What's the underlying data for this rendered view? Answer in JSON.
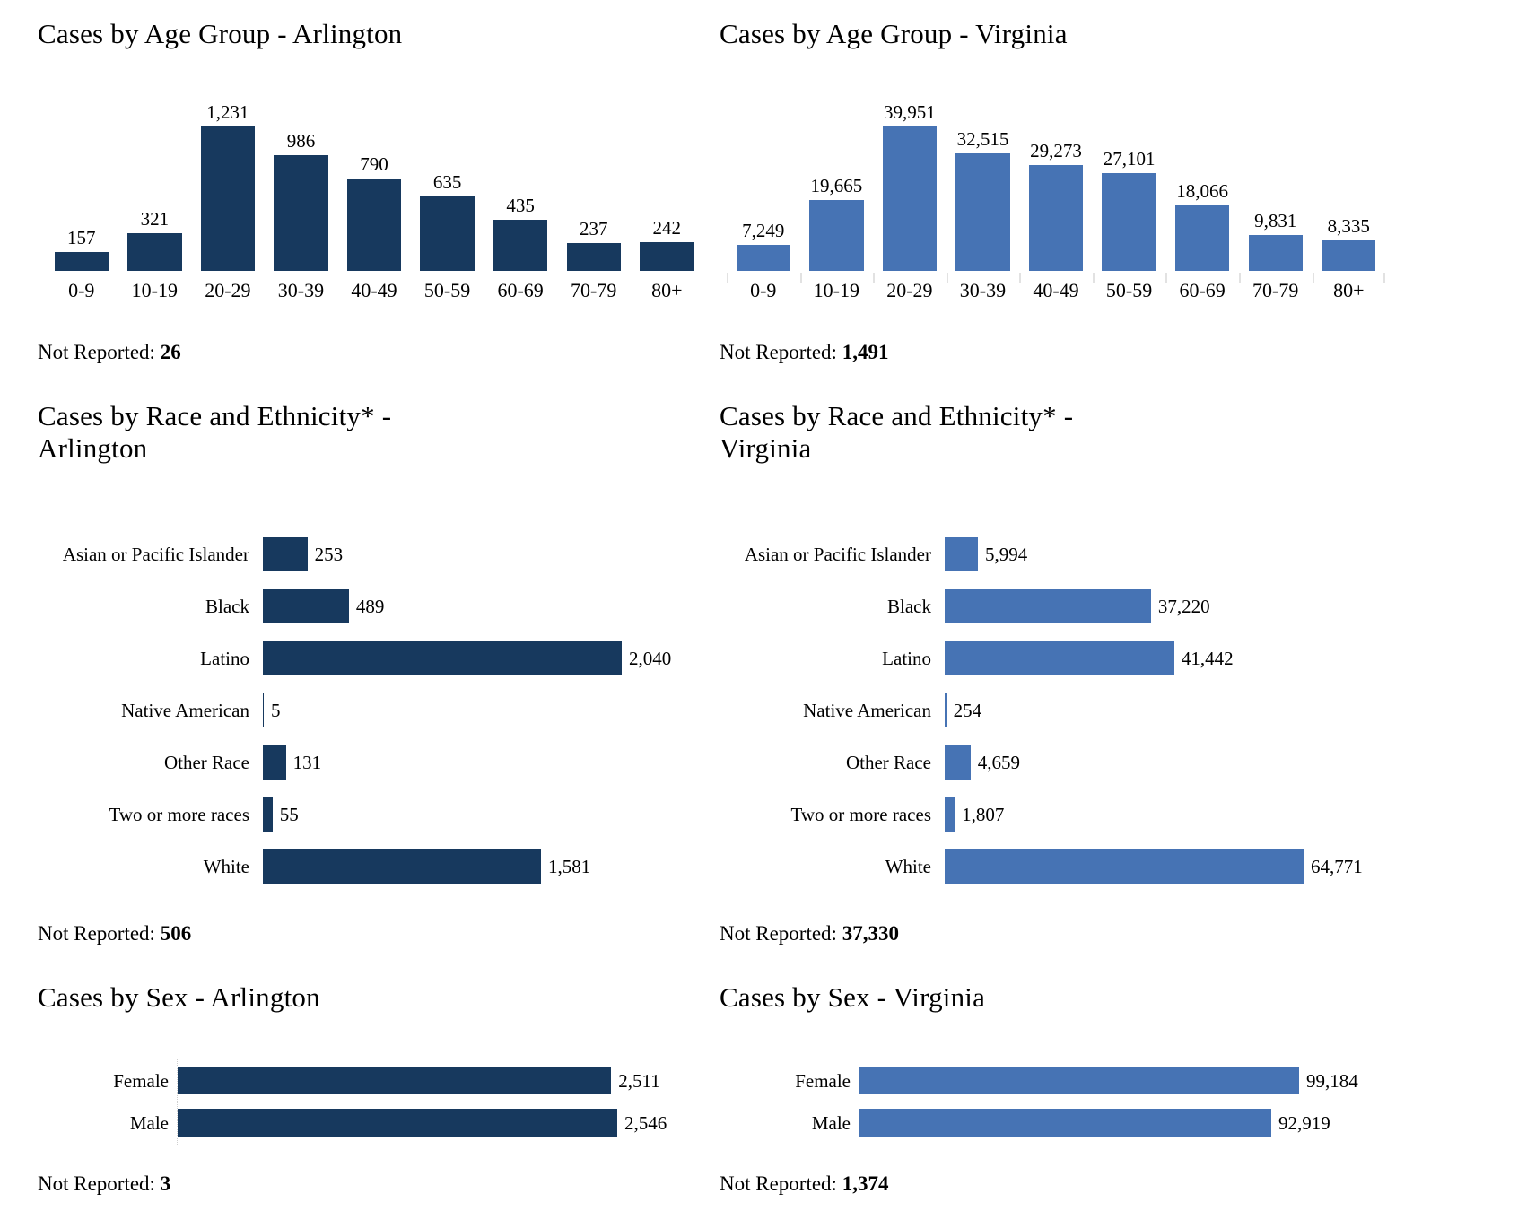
{
  "page": {
    "background": "#ffffff"
  },
  "not_reported_label": "Not Reported:",
  "chart_data": [
    {
      "id": "cases-by-age-arlington",
      "type": "bar",
      "orientation": "vertical",
      "title": "Cases by Age Group - Arlington",
      "title_lines": [
        "Cases by Age Group - Arlington"
      ],
      "color": "#17395E",
      "categories": [
        "0-9",
        "10-19",
        "20-29",
        "30-39",
        "40-49",
        "50-59",
        "60-69",
        "70-79",
        "80+"
      ],
      "values": [
        157,
        321,
        1231,
        986,
        790,
        635,
        435,
        237,
        242
      ],
      "value_labels": [
        "157",
        "321",
        "1,231",
        "986",
        "790",
        "635",
        "435",
        "237",
        "242"
      ],
      "ylim": [
        0,
        1231
      ],
      "grid": false,
      "legend": false,
      "axis_ticks": false,
      "not_reported": "26"
    },
    {
      "id": "cases-by-age-virginia",
      "type": "bar",
      "orientation": "vertical",
      "title": "Cases by Age Group - Virginia",
      "title_lines": [
        "Cases by Age Group - Virginia"
      ],
      "color": "#4673B4",
      "categories": [
        "0-9",
        "10-19",
        "20-29",
        "30-39",
        "40-49",
        "50-59",
        "60-69",
        "70-79",
        "80+"
      ],
      "values": [
        7249,
        19665,
        39951,
        32515,
        29273,
        27101,
        18066,
        9831,
        8335
      ],
      "value_labels": [
        "7,249",
        "19,665",
        "39,951",
        "32,515",
        "29,273",
        "27,101",
        "18,066",
        "9,831",
        "8,335"
      ],
      "ylim": [
        0,
        39951
      ],
      "grid": false,
      "legend": false,
      "axis_ticks": true,
      "not_reported": "1,491"
    },
    {
      "id": "cases-by-race-arlington",
      "type": "bar",
      "orientation": "horizontal",
      "title": "Cases by Race and Ethnicity* - Arlington",
      "title_lines": [
        "Cases by Race and Ethnicity* -",
        "Arlington"
      ],
      "color": "#17395E",
      "categories": [
        "Asian or Pacific Islander",
        "Black",
        "Latino",
        "Native American",
        "Other Race",
        "Two or more races",
        "White"
      ],
      "values": [
        253,
        489,
        2040,
        5,
        131,
        55,
        1581
      ],
      "value_labels": [
        "253",
        "489",
        "2,040",
        "5",
        "131",
        "55",
        "1,581"
      ],
      "xlim": [
        0,
        2040
      ],
      "grid": false,
      "legend": false,
      "axis_ticks": false,
      "not_reported": "506"
    },
    {
      "id": "cases-by-race-virginia",
      "type": "bar",
      "orientation": "horizontal",
      "title": "Cases by Race and Ethnicity* - Virginia",
      "title_lines": [
        "Cases by Race and Ethnicity* -",
        "Virginia"
      ],
      "color": "#4673B4",
      "categories": [
        "Asian or Pacific Islander",
        "Black",
        "Latino",
        "Native American",
        "Other Race",
        "Two or more races",
        "White"
      ],
      "values": [
        5994,
        37220,
        41442,
        254,
        4659,
        1807,
        64771
      ],
      "value_labels": [
        "5,994",
        "37,220",
        "41,442",
        "254",
        "4,659",
        "1,807",
        "64,771"
      ],
      "xlim": [
        0,
        64771
      ],
      "grid": false,
      "legend": false,
      "axis_ticks": false,
      "not_reported": "37,330"
    },
    {
      "id": "cases-by-sex-arlington",
      "type": "bar",
      "orientation": "horizontal",
      "title": "Cases by Sex - Arlington",
      "title_lines": [
        "Cases by Sex - Arlington"
      ],
      "color": "#17395E",
      "categories": [
        "Female",
        "Male"
      ],
      "values": [
        2511,
        2546
      ],
      "value_labels": [
        "2,511",
        "2,546"
      ],
      "xlim": [
        0,
        2546
      ],
      "grid": false,
      "legend": false,
      "axis_ticks": false,
      "not_reported": "3"
    },
    {
      "id": "cases-by-sex-virginia",
      "type": "bar",
      "orientation": "horizontal",
      "title": "Cases by Sex - Virginia",
      "title_lines": [
        "Cases by Sex - Virginia"
      ],
      "color": "#4673B4",
      "categories": [
        "Female",
        "Male"
      ],
      "values": [
        99184,
        92919
      ],
      "value_labels": [
        "99,184",
        "92,919"
      ],
      "xlim": [
        0,
        99184
      ],
      "grid": false,
      "legend": false,
      "axis_ticks": false,
      "not_reported": "1,374"
    }
  ]
}
